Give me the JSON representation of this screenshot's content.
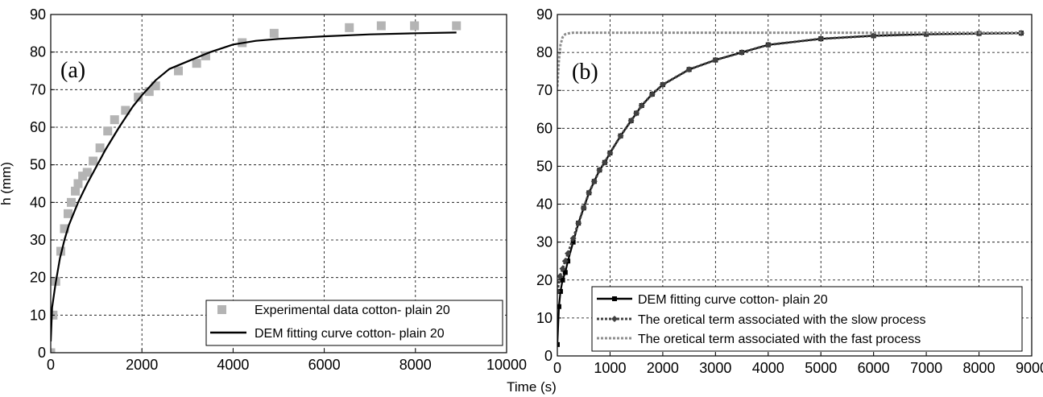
{
  "figure": {
    "shared_xlabel": "Time (s)"
  },
  "chart_data": [
    {
      "type": "scatter",
      "panel_label": "(a)",
      "xlabel": "Time (s)",
      "ylabel": "h (mm)",
      "xlim": [
        0,
        10000
      ],
      "ylim": [
        0,
        90
      ],
      "xticks": [
        0,
        2000,
        4000,
        6000,
        8000,
        10000
      ],
      "yticks": [
        0,
        10,
        20,
        30,
        40,
        50,
        60,
        70,
        80,
        90
      ],
      "grid": true,
      "legend_position": "bottom-right",
      "series": [
        {
          "name": "Experimental data cotton- plain 20",
          "style": "markers",
          "marker": "square",
          "color": "#b4b4b4",
          "x": [
            0,
            50,
            110,
            220,
            300,
            380,
            450,
            540,
            600,
            700,
            800,
            930,
            1080,
            1250,
            1400,
            1640,
            1920,
            2160,
            2300,
            2800,
            3200,
            3400,
            4200,
            4900,
            6550,
            7250,
            7980,
            8900
          ],
          "y": [
            0,
            10,
            19,
            27,
            33,
            37,
            40,
            43,
            45,
            47,
            48,
            51,
            54.5,
            59,
            62,
            64.5,
            68,
            69.5,
            71,
            75,
            77,
            79,
            82.5,
            85,
            86.5,
            87,
            87,
            87
          ]
        },
        {
          "name": "DEM fitting curve cotton- plain 20",
          "style": "line",
          "color": "#000000",
          "x": [
            0,
            30,
            100,
            200,
            300,
            400,
            600,
            800,
            1000,
            1200,
            1500,
            1800,
            2000,
            2300,
            2600,
            3000,
            3500,
            4000,
            4500,
            5000,
            6000,
            7000,
            8000,
            8900
          ],
          "y": [
            3,
            12,
            18,
            25,
            30,
            34,
            40,
            45,
            49.5,
            54,
            60,
            65.5,
            68.5,
            72.5,
            75.5,
            77.5,
            80,
            82,
            83,
            83.5,
            84.2,
            84.7,
            85,
            85.2
          ]
        }
      ]
    },
    {
      "type": "line",
      "panel_label": "(b)",
      "xlabel": "Time (s)",
      "ylabel": "",
      "xlim": [
        0,
        9000
      ],
      "ylim": [
        0,
        90
      ],
      "xticks": [
        0,
        1000,
        2000,
        3000,
        4000,
        5000,
        6000,
        7000,
        8000,
        9000
      ],
      "yticks": [
        0,
        10,
        20,
        30,
        40,
        50,
        60,
        70,
        80,
        90
      ],
      "grid": true,
      "legend_position": "bottom-right",
      "series": [
        {
          "name": "DEM fitting curve cotton- plain 20",
          "style": "solid",
          "marker": "square",
          "color": "#000000",
          "x": [
            0,
            30,
            60,
            100,
            150,
            200,
            300,
            400,
            500,
            600,
            700,
            800,
            900,
            1000,
            1200,
            1400,
            1500,
            1600,
            1800,
            2000,
            2500,
            3000,
            3500,
            4000,
            5000,
            6000,
            7000,
            8000,
            8800
          ],
          "y": [
            3,
            13,
            17,
            20,
            22,
            25,
            30,
            35,
            39,
            43,
            46,
            49,
            51,
            53.5,
            58,
            62,
            64,
            66,
            69,
            71.5,
            75.5,
            78,
            80,
            82,
            83.6,
            84.4,
            84.8,
            85,
            85.1
          ]
        },
        {
          "name": "The oretical term associated with the slow process",
          "style": "dotted",
          "marker": "diamond",
          "color": "#404040",
          "x": [
            0,
            50,
            100,
            150,
            200,
            300,
            400,
            500,
            600,
            700,
            800,
            900,
            1000,
            1200,
            1400,
            1500,
            1600,
            1800,
            2000,
            2500,
            3000,
            3500,
            4000,
            5000,
            6000,
            7000,
            8000,
            8800
          ],
          "y": [
            17,
            21,
            23,
            25,
            27,
            31,
            35,
            39,
            43,
            46,
            49,
            51,
            53.5,
            58,
            62,
            64,
            66,
            69,
            71.5,
            75.5,
            78,
            80,
            82,
            83.6,
            84.4,
            84.8,
            85,
            85.1
          ]
        },
        {
          "name": "The oretical term associated with the fast process",
          "style": "dotted",
          "color": "#8c8c8c",
          "x": [
            0,
            30,
            60,
            100,
            150,
            200,
            300,
            400,
            600,
            1000,
            2000,
            4000,
            6000,
            8800
          ],
          "y": [
            71,
            78,
            82,
            84,
            84.8,
            85,
            85.2,
            85.2,
            85.2,
            85.2,
            85.2,
            85.2,
            85.2,
            85.2
          ]
        }
      ]
    }
  ]
}
